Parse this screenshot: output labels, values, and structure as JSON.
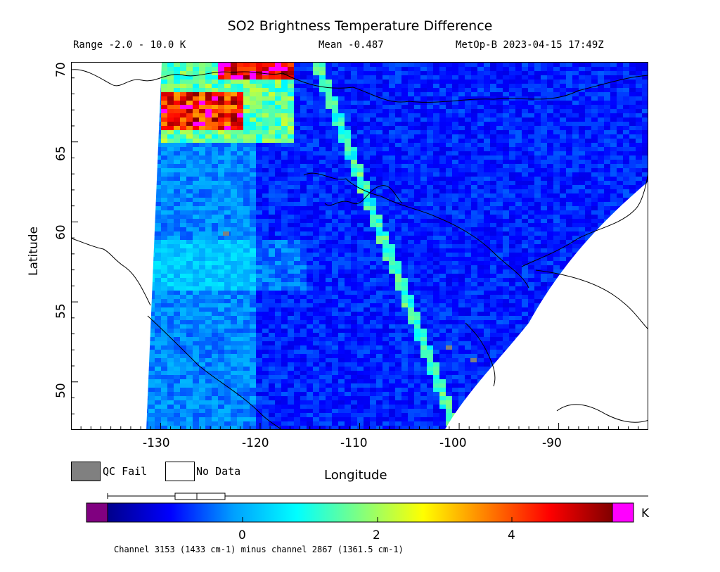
{
  "header": {
    "title": "SO2 Brightness Temperature Difference",
    "range_text": "Range -2.0 - 10.0 K",
    "mean_text": "Mean -0.487",
    "satellite_text": "MetOp-B 2023-04-15 17:49Z"
  },
  "axes": {
    "x_label": "Longitude",
    "y_label": "Latitude",
    "x_ticks": [
      "-130",
      "-120",
      "-110",
      "-100",
      "-90"
    ],
    "y_ticks": [
      "50",
      "55",
      "60",
      "65",
      "70"
    ],
    "x_range": [
      -139,
      -81
    ],
    "y_range": [
      47,
      70
    ]
  },
  "legend": {
    "qc_fail": "QC Fail",
    "no_data": "No Data",
    "qc_color": "#808080"
  },
  "colorbar": {
    "ticks": [
      "0",
      "2",
      "4"
    ],
    "unit": "K",
    "range": [
      -2.0,
      10.0
    ],
    "under_color": "#800080",
    "over_color": "#ff00ff",
    "colors": [
      "#00008b",
      "#0000ff",
      "#00a0ff",
      "#00ffff",
      "#80ff80",
      "#ffff00",
      "#ff8000",
      "#ff0000",
      "#800000"
    ]
  },
  "footnote": "Channel 3153 (1433 cm-1) minus channel 2867 (1361.5 cm-1)",
  "chart_data": {
    "type": "heatmap",
    "title": "SO2 Brightness Temperature Difference",
    "xlabel": "Longitude",
    "ylabel": "Latitude",
    "xlim": [
      -139,
      -81
    ],
    "ylim": [
      47,
      70
    ],
    "units": "K",
    "mean": -0.487,
    "value_range": [
      -2.0,
      10.0
    ],
    "colorbar_ticks": [
      0,
      2,
      4
    ],
    "features": [
      {
        "name": "swath-background",
        "approx_value": -0.7
      },
      {
        "name": "high-values-northwest",
        "lon_range": [
          -131,
          -121
        ],
        "lat_range": [
          66,
          70
        ],
        "approx_value": 5
      }
    ]
  }
}
